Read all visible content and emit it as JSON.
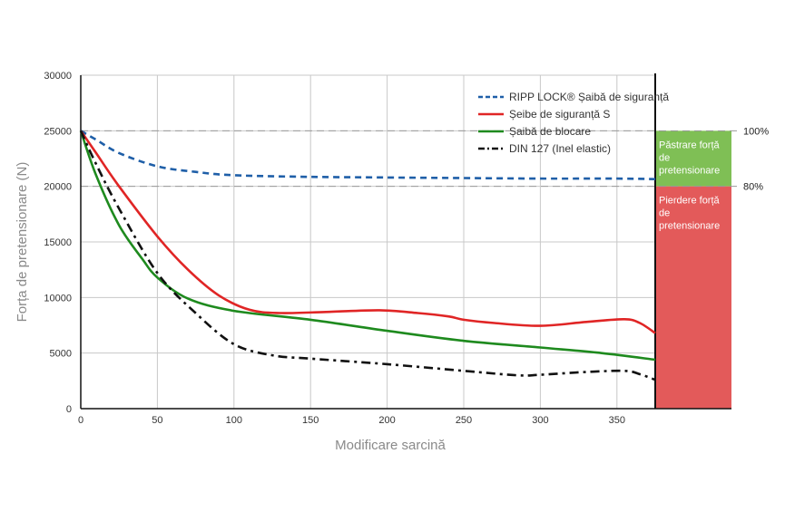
{
  "chart_data": {
    "type": "line",
    "title": "",
    "xlabel": "Modificare sarcină",
    "ylabel": "Forța de pretensionare (N)",
    "xlim": [
      0,
      375
    ],
    "ylim": [
      0,
      30000
    ],
    "x_ticks": [
      "0",
      "50",
      "100",
      "150",
      "200",
      "250",
      "300",
      "350"
    ],
    "y_ticks": [
      "0",
      "5000",
      "10000",
      "15000",
      "20000",
      "25000",
      "30000"
    ],
    "grid": true,
    "legend_position": "top-right",
    "series": [
      {
        "name": "RIPP LOCK® Șaibă de siguranță",
        "color": "#1f5fa8",
        "dash": "dash",
        "points": [
          [
            0,
            25000
          ],
          [
            10,
            24200
          ],
          [
            25,
            23000
          ],
          [
            50,
            21800
          ],
          [
            75,
            21300
          ],
          [
            100,
            21000
          ],
          [
            150,
            20850
          ],
          [
            200,
            20800
          ],
          [
            250,
            20750
          ],
          [
            300,
            20700
          ],
          [
            350,
            20700
          ],
          [
            375,
            20650
          ]
        ]
      },
      {
        "name": "Șeibe de siguranță S",
        "color": "#e02525",
        "dash": "solid",
        "points": [
          [
            0,
            25000
          ],
          [
            10,
            23000
          ],
          [
            25,
            20000
          ],
          [
            50,
            15500
          ],
          [
            70,
            12500
          ],
          [
            90,
            10200
          ],
          [
            110,
            8900
          ],
          [
            130,
            8600
          ],
          [
            160,
            8700
          ],
          [
            195,
            8850
          ],
          [
            220,
            8600
          ],
          [
            240,
            8300
          ],
          [
            250,
            8000
          ],
          [
            270,
            7700
          ],
          [
            300,
            7450
          ],
          [
            330,
            7800
          ],
          [
            355,
            8050
          ],
          [
            365,
            7700
          ],
          [
            375,
            6800
          ]
        ]
      },
      {
        "name": "Șaibă de blocare",
        "color": "#1e8a1e",
        "dash": "solid",
        "points": [
          [
            0,
            25000
          ],
          [
            10,
            21000
          ],
          [
            25,
            16500
          ],
          [
            40,
            13500
          ],
          [
            50,
            11800
          ],
          [
            70,
            9900
          ],
          [
            100,
            8800
          ],
          [
            150,
            8000
          ],
          [
            200,
            7000
          ],
          [
            250,
            6100
          ],
          [
            300,
            5500
          ],
          [
            340,
            5000
          ],
          [
            375,
            4400
          ]
        ]
      },
      {
        "name": "DIN 127 (Inel elastic)",
        "color": "#111111",
        "dash": "dashdot",
        "points": [
          [
            0,
            25000
          ],
          [
            10,
            22000
          ],
          [
            25,
            18000
          ],
          [
            50,
            12200
          ],
          [
            75,
            8600
          ],
          [
            100,
            5800
          ],
          [
            125,
            4800
          ],
          [
            150,
            4500
          ],
          [
            200,
            4000
          ],
          [
            250,
            3400
          ],
          [
            285,
            3000
          ],
          [
            300,
            3050
          ],
          [
            330,
            3300
          ],
          [
            355,
            3400
          ],
          [
            365,
            3100
          ],
          [
            375,
            2600
          ]
        ]
      }
    ],
    "reference_lines": [
      {
        "label": "100%",
        "y": 25000
      },
      {
        "label": "80%",
        "y": 20000
      }
    ],
    "bands": [
      {
        "label": "Păstrare forță de pretensionare",
        "lines": [
          "Păstrare forță",
          "de",
          "pretensionare"
        ],
        "y_from": 20000,
        "y_to": 25000,
        "color": "#7fbf55"
      },
      {
        "label": "Pierdere forță de pretensionare",
        "lines": [
          "Pierdere forță",
          "de",
          "pretensionare"
        ],
        "y_from": 0,
        "y_to": 20000,
        "color": "#e35a5a"
      }
    ]
  }
}
